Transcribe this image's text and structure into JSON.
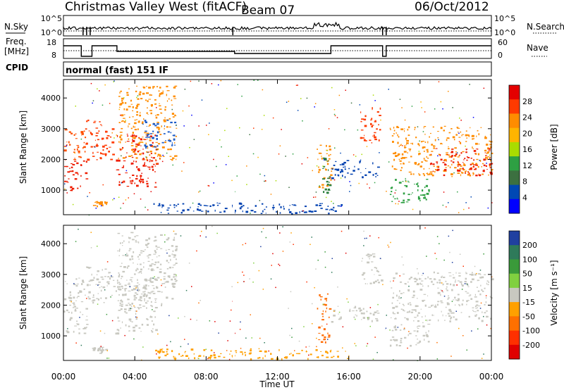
{
  "header": {
    "station": "Christmas Valley West (fitACF)",
    "beam": "Beam 07",
    "date": "06/Oct/2012"
  },
  "params": {
    "nsky_label": "N.Sky",
    "nsearch_label": "N.Search",
    "freq_label_1": "Freq.",
    "freq_label_2": "[MHz]",
    "nave_label": "Nave",
    "cpid_label": "CPID",
    "cpid_text": "normal (fast) 151 IF",
    "nsky_ticks": [
      "10^5",
      "10^0"
    ],
    "nsearch_ticks": [
      "10^5",
      "10^0"
    ],
    "freq_ticks": [
      "18",
      "8"
    ],
    "nave_ticks": [
      "60",
      "0"
    ]
  },
  "chart_data": [
    {
      "type": "heatmap",
      "title": "Power",
      "ylabel": "Slant Range [km]",
      "xlabel": "Time UT",
      "ylim": [
        200,
        4600
      ],
      "yticks": [
        "4000",
        "3000",
        "2000",
        "1000"
      ],
      "xticks": [
        "00:00",
        "04:00",
        "08:00",
        "12:00",
        "16:00",
        "20:00",
        "00:00"
      ],
      "colorbar": {
        "label": "Power [dB]",
        "ticks": [
          "28",
          "24",
          "20",
          "16",
          "12",
          "8",
          "4"
        ],
        "colors": [
          "#e40000",
          "#ff3a00",
          "#ff8c00",
          "#ffb400",
          "#aadc00",
          "#2ea043",
          "#3c7040",
          "#0048b4",
          "#0000ff"
        ]
      },
      "regions": [
        {
          "t0": 0.0,
          "t1": 1.3,
          "r0": 1000,
          "r1": 2000,
          "color": "#ee1c00"
        },
        {
          "t0": 0.0,
          "t1": 1.2,
          "r0": 2000,
          "r1": 3000,
          "color": "#ff5000"
        },
        {
          "t0": 1.2,
          "t1": 2.8,
          "r0": 2000,
          "r1": 3300,
          "color": "#ff3a00"
        },
        {
          "t0": 2.9,
          "t1": 5.2,
          "r0": 1100,
          "r1": 2900,
          "color": "#ee1c00"
        },
        {
          "t0": 3.0,
          "t1": 6.3,
          "r0": 2000,
          "r1": 4400,
          "color": "#ff8c00"
        },
        {
          "t0": 4.5,
          "t1": 6.3,
          "r0": 2400,
          "r1": 3300,
          "color": "#1c5cc8"
        },
        {
          "t0": 14.2,
          "t1": 15.0,
          "r0": 1000,
          "r1": 2500,
          "color": "#ff8c00"
        },
        {
          "t0": 14.5,
          "t1": 14.9,
          "r0": 900,
          "r1": 2200,
          "color": "#2e8040"
        },
        {
          "t0": 15.0,
          "t1": 17.6,
          "r0": 1400,
          "r1": 2000,
          "color": "#0040b0"
        },
        {
          "t0": 16.6,
          "t1": 17.8,
          "r0": 2600,
          "r1": 3700,
          "color": "#ff3a00"
        },
        {
          "t0": 18.3,
          "t1": 24.0,
          "r0": 1500,
          "r1": 3100,
          "color": "#ff8c00"
        },
        {
          "t0": 20.5,
          "t1": 24.0,
          "r0": 1500,
          "r1": 2400,
          "color": "#ee1c00"
        },
        {
          "t0": 18.3,
          "t1": 20.5,
          "r0": 600,
          "r1": 1400,
          "color": "#2ea043"
        },
        {
          "t0": 5.0,
          "t1": 16.0,
          "r0": 250,
          "r1": 600,
          "color": "#0040b0"
        },
        {
          "t0": 1.6,
          "t1": 2.4,
          "r0": 450,
          "r1": 650,
          "color": "#ff8c00"
        }
      ]
    },
    {
      "type": "heatmap",
      "title": "Velocity",
      "ylabel": "Slant Range [km]",
      "xlabel": "Time UT",
      "ylim": [
        200,
        4600
      ],
      "yticks": [
        "4000",
        "3000",
        "2000",
        "1000"
      ],
      "xticks": [
        "00:00",
        "04:00",
        "08:00",
        "12:00",
        "16:00",
        "20:00",
        "00:00"
      ],
      "colorbar": {
        "label": "Velocity [m s⁻¹]",
        "ticks": [
          "200",
          "100",
          "50",
          "15",
          "-15",
          "-50",
          "-100",
          "-200"
        ],
        "colors": [
          "#2040a0",
          "#2e7a5a",
          "#3a9a3a",
          "#80d040",
          "#c8c8c0",
          "#ffa000",
          "#ff7000",
          "#ff3000",
          "#e00000"
        ]
      },
      "regions": [
        {
          "t0": 0.0,
          "t1": 1.3,
          "r0": 1100,
          "r1": 2100,
          "color": "#c8c8c0"
        },
        {
          "t0": 0.0,
          "t1": 1.2,
          "r0": 2100,
          "r1": 2900,
          "color": "#c8c8c0"
        },
        {
          "t0": 1.2,
          "t1": 2.8,
          "r0": 2100,
          "r1": 3300,
          "color": "#c8c8c0"
        },
        {
          "t0": 2.9,
          "t1": 5.2,
          "r0": 1100,
          "r1": 2900,
          "color": "#c8c8c0"
        },
        {
          "t0": 3.0,
          "t1": 6.3,
          "r0": 2000,
          "r1": 4400,
          "color": "#c8c8c0"
        },
        {
          "t0": 14.2,
          "t1": 14.9,
          "r0": 800,
          "r1": 2400,
          "color": "#ff6a00"
        },
        {
          "t0": 15.0,
          "t1": 17.6,
          "r0": 1400,
          "r1": 2000,
          "color": "#c8c8c0"
        },
        {
          "t0": 16.6,
          "t1": 17.8,
          "r0": 2700,
          "r1": 3700,
          "color": "#c8c8c0"
        },
        {
          "t0": 18.3,
          "t1": 24.0,
          "r0": 1500,
          "r1": 3100,
          "color": "#c8c8c0"
        },
        {
          "t0": 18.3,
          "t1": 20.5,
          "r0": 700,
          "r1": 1400,
          "color": "#c8c8c0"
        },
        {
          "t0": 5.0,
          "t1": 16.0,
          "r0": 250,
          "r1": 600,
          "color": "#ffa000"
        },
        {
          "t0": 1.6,
          "t1": 2.4,
          "r0": 450,
          "r1": 650,
          "color": "#c8c8c0"
        }
      ]
    }
  ]
}
